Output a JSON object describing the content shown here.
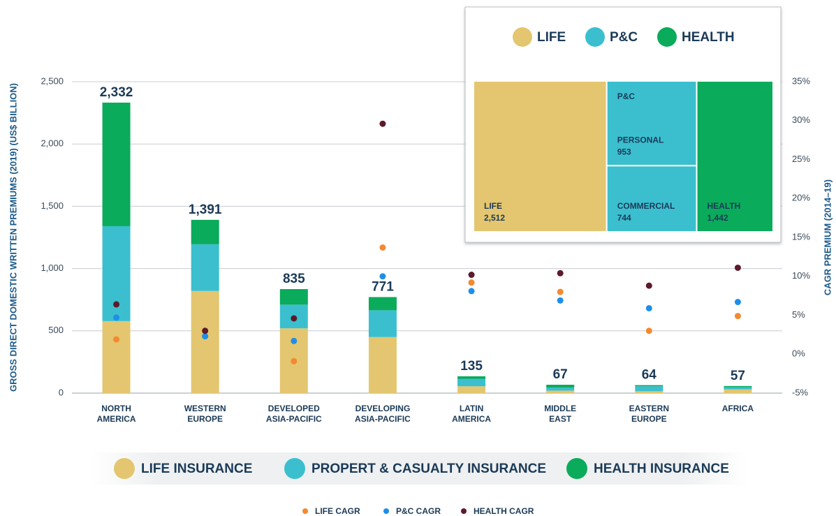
{
  "chart_data": {
    "type": "bar",
    "stacked": true,
    "categories": [
      "NORTH\nAMERICA",
      "WESTERN\nEUROPE",
      "DEVELOPED\nASIA-PACIFIC",
      "DEVELOPING\nASIA-PACIFIC",
      "LATIN\nAMERICA",
      "MIDDLE\nEAST",
      "EASTERN\nEUROPE",
      "AFRICA"
    ],
    "series": [
      {
        "name": "LIFE INSURANCE",
        "type": "bar",
        "color": "#e3c66f",
        "values": [
          578,
          820,
          520,
          450,
          55,
          20,
          15,
          30
        ]
      },
      {
        "name": "PROPERT & CASUALTY INSURANCE",
        "type": "bar",
        "color": "#3bbfcf",
        "values": [
          762,
          375,
          190,
          215,
          60,
          25,
          40,
          18
        ]
      },
      {
        "name": "HEALTH INSURANCE",
        "type": "bar",
        "color": "#0aab5b",
        "values": [
          992,
          196,
          125,
          106,
          20,
          22,
          9,
          9
        ]
      },
      {
        "name": "LIFE CAGR",
        "type": "scatter",
        "axis": "y2",
        "color": "#f4892f",
        "values": [
          1.9,
          2.3,
          -0.9,
          13.7,
          9.2,
          8.0,
          3.0,
          4.9
        ]
      },
      {
        "name": "P&C CAGR",
        "type": "scatter",
        "axis": "y2",
        "color": "#1e8fe8",
        "values": [
          4.7,
          2.3,
          1.7,
          10.0,
          8.1,
          6.9,
          5.9,
          6.7
        ]
      },
      {
        "name": "HEALTH CAGR",
        "type": "scatter",
        "axis": "y2",
        "color": "#5c1a2a",
        "values": [
          6.4,
          3.0,
          4.6,
          29.6,
          10.2,
          10.4,
          8.8,
          11.1
        ]
      }
    ],
    "totals": {
      "values": [
        2332,
        1391,
        835,
        771,
        135,
        67,
        64,
        57
      ],
      "value_labels": [
        "2,332",
        "1,391",
        "835",
        "771",
        "135",
        "67",
        "64",
        "57"
      ]
    },
    "ylabel": "GROSS DIRECT DOMESTIC WRITTEN PREMIUMS (2019) (US$ BILLION)",
    "y2label": "CAGR PREMIUM (2014–19)",
    "ylim": [
      0,
      2500
    ],
    "yticks": [
      0,
      500,
      {
        "value": 1000,
        "label": "1,000"
      },
      {
        "value": 1500,
        "label": "1,500"
      },
      {
        "value": 2000,
        "label": "2,000"
      },
      {
        "value": 2500,
        "label": "2,500"
      }
    ],
    "y2lim": [
      -5,
      35
    ],
    "y2ticks": [
      {
        "value": -5,
        "label": "-5%"
      },
      {
        "value": 0,
        "label": "0%"
      },
      {
        "value": 5,
        "label": "5%"
      },
      {
        "value": 10,
        "label": "10%"
      },
      {
        "value": 15,
        "label": "15%"
      },
      {
        "value": 20,
        "label": "20%"
      },
      {
        "value": 25,
        "label": "25%"
      },
      {
        "value": 30,
        "label": "30%"
      },
      {
        "value": 35,
        "label": "35%"
      }
    ],
    "grid": true
  },
  "inset": {
    "legend": [
      {
        "name": "LIFE",
        "color": "#e3c66f"
      },
      {
        "name": "P&C",
        "color": "#3bbfcf"
      },
      {
        "name": "HEALTH",
        "color": "#0aab5b"
      }
    ],
    "treemap": [
      {
        "name": "LIFE",
        "color": "#e3c66f",
        "value": 2512,
        "value_label": "2,512"
      },
      {
        "name": "P&C",
        "color": "#3bbfcf",
        "children": [
          {
            "name": "PERSONAL",
            "value": 953,
            "value_label": "953"
          },
          {
            "name": "COMMERCIAL",
            "value": 744,
            "value_label": "744"
          }
        ]
      },
      {
        "name": "HEALTH",
        "color": "#0aab5b",
        "value": 1442,
        "value_label": "1,442"
      }
    ]
  }
}
